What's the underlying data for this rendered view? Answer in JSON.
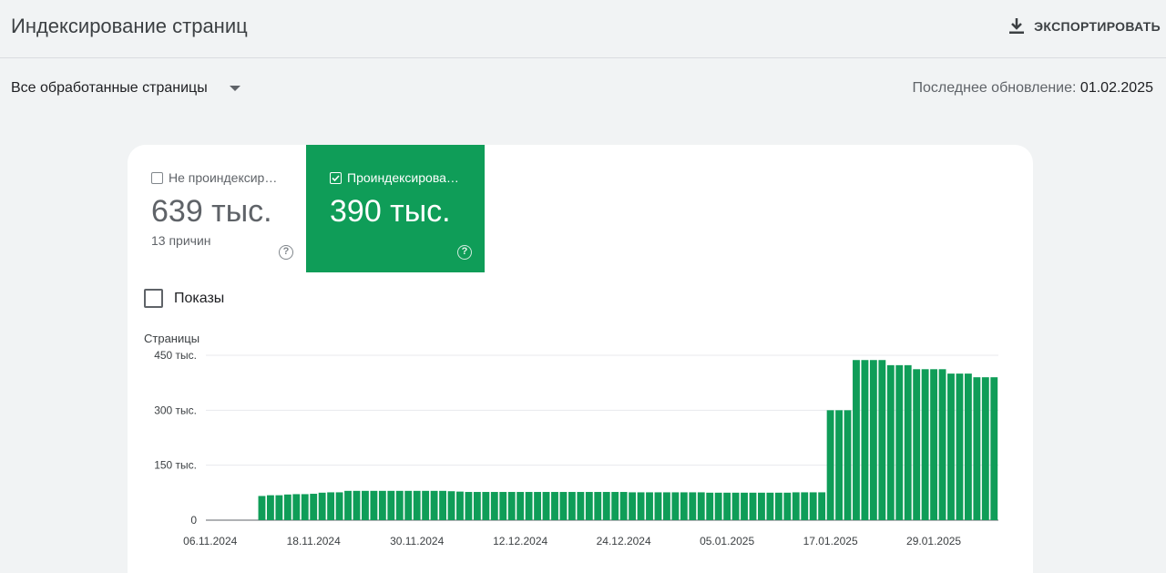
{
  "header": {
    "title": "Индексирование страниц",
    "export_label": "ЭКСПОРТИРОВАТЬ"
  },
  "filter": {
    "selected": "Все обработанные страницы"
  },
  "last_update": {
    "label": "Последнее обновление:",
    "date": "01.02.2025"
  },
  "tiles": {
    "not_indexed": {
      "label": "Не проиндексир…",
      "value": "639 тыс.",
      "sub": "13 причин",
      "checked": false
    },
    "indexed": {
      "label": "Проиндексирова…",
      "value": "390 тыс.",
      "checked": true
    }
  },
  "impressions_label": "Показы",
  "colors": {
    "bar": "#0f9d58",
    "tile_active": "#0f9d58"
  },
  "chart_data": {
    "type": "bar",
    "ylabel": "Страницы",
    "ylim": [
      0,
      450000
    ],
    "y_ticks": [
      {
        "value": 0,
        "label": "0"
      },
      {
        "value": 150000,
        "label": "150 тыс."
      },
      {
        "value": 300000,
        "label": "300 тыс."
      },
      {
        "value": 450000,
        "label": "450 тыс."
      }
    ],
    "x_tick_labels": [
      "06.11.2024",
      "18.11.2024",
      "30.11.2024",
      "12.12.2024",
      "24.12.2024",
      "05.01.2025",
      "17.01.2025",
      "29.01.2025"
    ],
    "x_start": "06.11.2024",
    "x_end": "01.02.2025",
    "values": [
      0,
      0,
      0,
      0,
      0,
      0,
      66000,
      68000,
      68000,
      70000,
      71000,
      71000,
      72000,
      75000,
      76000,
      76000,
      80000,
      80000,
      80000,
      80000,
      80000,
      80000,
      80000,
      80000,
      80000,
      80000,
      80000,
      80000,
      79000,
      78000,
      77000,
      77000,
      77000,
      77000,
      77000,
      77000,
      77000,
      77000,
      77000,
      77000,
      77000,
      77000,
      77000,
      77000,
      77000,
      77000,
      77000,
      77000,
      77000,
      76000,
      76000,
      76000,
      76000,
      76000,
      76000,
      76000,
      76000,
      76000,
      75000,
      75000,
      75000,
      75000,
      75000,
      75000,
      75000,
      75000,
      75000,
      75000,
      76000,
      76000,
      76000,
      76000,
      300000,
      300000,
      300000,
      437000,
      437000,
      437000,
      437000,
      423000,
      423000,
      423000,
      412000,
      412000,
      412000,
      412000,
      400000,
      400000,
      400000,
      390000,
      390000,
      390000
    ],
    "grid": true,
    "legend": "none"
  }
}
